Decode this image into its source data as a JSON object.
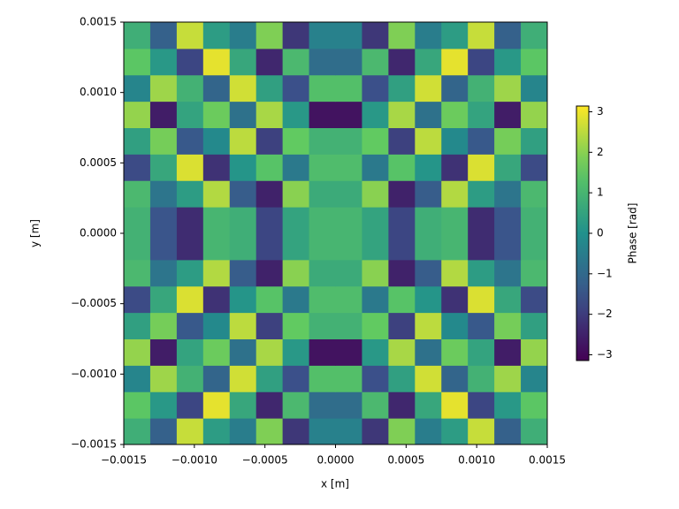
{
  "chart_data": {
    "type": "heatmap",
    "xlabel": "x [m]",
    "ylabel": "y [m]",
    "xlim": [
      -0.0015,
      0.0015
    ],
    "ylim": [
      -0.0015,
      0.0015
    ],
    "xticks": [
      {
        "value": -0.0015,
        "label": "−0.0015"
      },
      {
        "value": -0.001,
        "label": "−0.0010"
      },
      {
        "value": -0.0005,
        "label": "−0.0005"
      },
      {
        "value": 0,
        "label": "0.0000"
      },
      {
        "value": 0.0005,
        "label": "0.0005"
      },
      {
        "value": 0.001,
        "label": "0.0010"
      },
      {
        "value": 0.0015,
        "label": "0.0015"
      }
    ],
    "yticks": [
      {
        "value": -0.0015,
        "label": "−0.0015"
      },
      {
        "value": -0.001,
        "label": "−0.0010"
      },
      {
        "value": -0.0005,
        "label": "−0.0005"
      },
      {
        "value": 0,
        "label": "0.0000"
      },
      {
        "value": 0.0005,
        "label": "0.0005"
      },
      {
        "value": 0.001,
        "label": "0.0010"
      },
      {
        "value": 0.0015,
        "label": "0.0015"
      }
    ],
    "colormap": "viridis",
    "clim": [
      -3.14159,
      3.14159
    ],
    "colorbar_label": "Phase [rad]",
    "colorbar_ticks": [
      {
        "value": -3,
        "label": "−3"
      },
      {
        "value": -2,
        "label": "−2"
      },
      {
        "value": -1,
        "label": "−1"
      },
      0,
      1,
      2,
      3
    ],
    "z": [
      [
        0.8,
        -1.2,
        2.6,
        0.3,
        -0.5,
        1.9,
        -2.1,
        -0.4,
        -0.4,
        -2.1,
        1.9,
        -0.5,
        0.3,
        2.6,
        -1.2,
        0.8
      ],
      [
        1.5,
        0.2,
        -1.8,
        2.9,
        0.6,
        -2.4,
        1.1,
        -0.9,
        -0.9,
        1.1,
        -2.4,
        0.6,
        2.9,
        -1.8,
        0.2,
        1.5
      ],
      [
        -0.3,
        2.2,
        0.9,
        -1.1,
        2.7,
        0.4,
        -1.6,
        1.3,
        1.3,
        -1.6,
        0.4,
        2.7,
        -1.1,
        0.9,
        2.2,
        -0.3
      ],
      [
        2.1,
        -2.6,
        0.5,
        1.7,
        -0.8,
        2.3,
        0.2,
        -2.8,
        -2.8,
        0.2,
        2.3,
        -0.8,
        1.7,
        0.5,
        -2.6,
        2.1
      ],
      [
        0.4,
        1.8,
        -1.4,
        -0.2,
        2.5,
        -1.9,
        1.6,
        0.9,
        0.9,
        1.6,
        -1.9,
        2.5,
        -0.2,
        -1.4,
        1.8,
        0.4
      ],
      [
        -1.7,
        0.6,
        2.8,
        -2.2,
        0.1,
        1.4,
        -0.6,
        1.2,
        1.2,
        -0.6,
        1.4,
        0.1,
        -2.2,
        2.8,
        0.6,
        -1.7
      ],
      [
        1.1,
        -0.7,
        0.3,
        2.4,
        -1.3,
        -2.5,
        2.0,
        0.7,
        0.7,
        2.0,
        -2.5,
        -1.3,
        2.4,
        0.3,
        -0.7,
        1.1
      ],
      [
        0.9,
        -1.5,
        -2.3,
        1.0,
        0.8,
        -1.8,
        0.5,
        1.0,
        1.0,
        0.5,
        -1.8,
        0.8,
        1.0,
        -2.3,
        -1.5,
        0.9
      ],
      [
        0.9,
        -1.5,
        -2.3,
        1.0,
        0.8,
        -1.8,
        0.5,
        1.0,
        1.0,
        0.5,
        -1.8,
        0.8,
        1.0,
        -2.3,
        -1.5,
        0.9
      ],
      [
        1.1,
        -0.7,
        0.3,
        2.4,
        -1.3,
        -2.5,
        2.0,
        0.7,
        0.7,
        2.0,
        -2.5,
        -1.3,
        2.4,
        0.3,
        -0.7,
        1.1
      ],
      [
        -1.7,
        0.6,
        2.8,
        -2.2,
        0.1,
        1.4,
        -0.6,
        1.2,
        1.2,
        -0.6,
        1.4,
        0.1,
        -2.2,
        2.8,
        0.6,
        -1.7
      ],
      [
        0.4,
        1.8,
        -1.4,
        -0.2,
        2.5,
        -1.9,
        1.6,
        0.9,
        0.9,
        1.6,
        -1.9,
        2.5,
        -0.2,
        -1.4,
        1.8,
        0.4
      ],
      [
        2.1,
        -2.6,
        0.5,
        1.7,
        -0.8,
        2.3,
        0.2,
        -2.8,
        -2.8,
        0.2,
        2.3,
        -0.8,
        1.7,
        0.5,
        -2.6,
        2.1
      ],
      [
        -0.3,
        2.2,
        0.9,
        -1.1,
        2.7,
        0.4,
        -1.6,
        1.3,
        1.3,
        -1.6,
        0.4,
        2.7,
        -1.1,
        0.9,
        2.2,
        -0.3
      ],
      [
        1.5,
        0.2,
        -1.8,
        2.9,
        0.6,
        -2.4,
        1.1,
        -0.9,
        -0.9,
        1.1,
        -2.4,
        0.6,
        2.9,
        -1.8,
        0.2,
        1.5
      ],
      [
        0.8,
        -1.2,
        2.6,
        0.3,
        -0.5,
        1.9,
        -2.1,
        -0.4,
        -0.4,
        -2.1,
        1.9,
        -0.5,
        0.3,
        2.6,
        -1.2,
        0.8
      ]
    ]
  }
}
